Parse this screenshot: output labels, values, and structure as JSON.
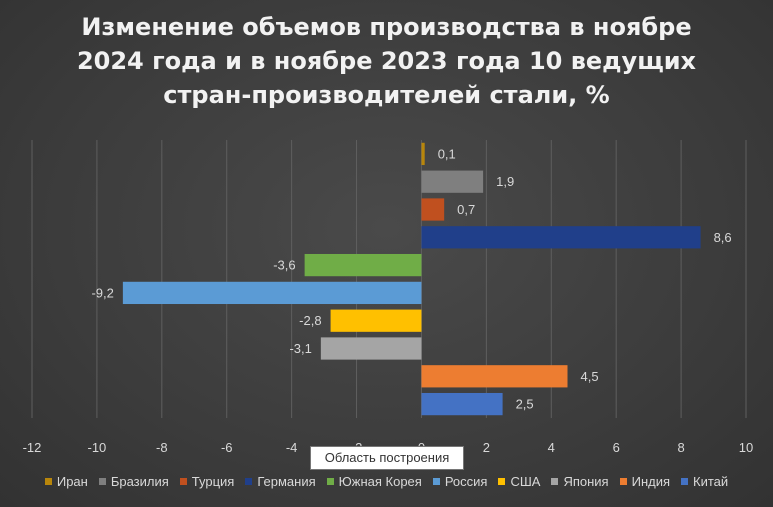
{
  "chart_data": {
    "type": "bar",
    "orientation": "horizontal",
    "title": "Изменение объемов производства в ноябре 2024 года и в ноябре 2023 года 10 ведущих стран-производителей стали, %",
    "title_lines": [
      "Изменение объемов производства в ноябре",
      "2024 года и в ноябре 2023 года 10 ведущих",
      "стран-производителей стали, %"
    ],
    "categories": [
      "Иран",
      "Бразилия",
      "Турция",
      "Германия",
      "Южная Корея",
      "Россия",
      "США",
      "Япония",
      "Индия",
      "Китай"
    ],
    "values": [
      0.1,
      1.9,
      0.7,
      8.6,
      -3.6,
      -9.2,
      -2.8,
      -3.1,
      4.5,
      2.5
    ],
    "data_labels": [
      "0,1",
      "1,9",
      "0,7",
      "8,6",
      "-3,6",
      "-9,2",
      "-2,8",
      "-3,1",
      "4,5",
      "2,5"
    ],
    "colors": [
      "#b8860b",
      "#7f7f7f",
      "#c0501f",
      "#203f8a",
      "#70ad47",
      "#5b9bd5",
      "#ffc000",
      "#a5a5a5",
      "#ed7d31",
      "#4472c4"
    ],
    "xlim": [
      -12,
      10
    ],
    "x_ticks": [
      "-12",
      "-10",
      "-8",
      "-6",
      "-4",
      "-2",
      "0",
      "2",
      "4",
      "6",
      "8",
      "10"
    ],
    "grid": true,
    "legend_position": "bottom"
  },
  "tooltip_text": "Область построения"
}
